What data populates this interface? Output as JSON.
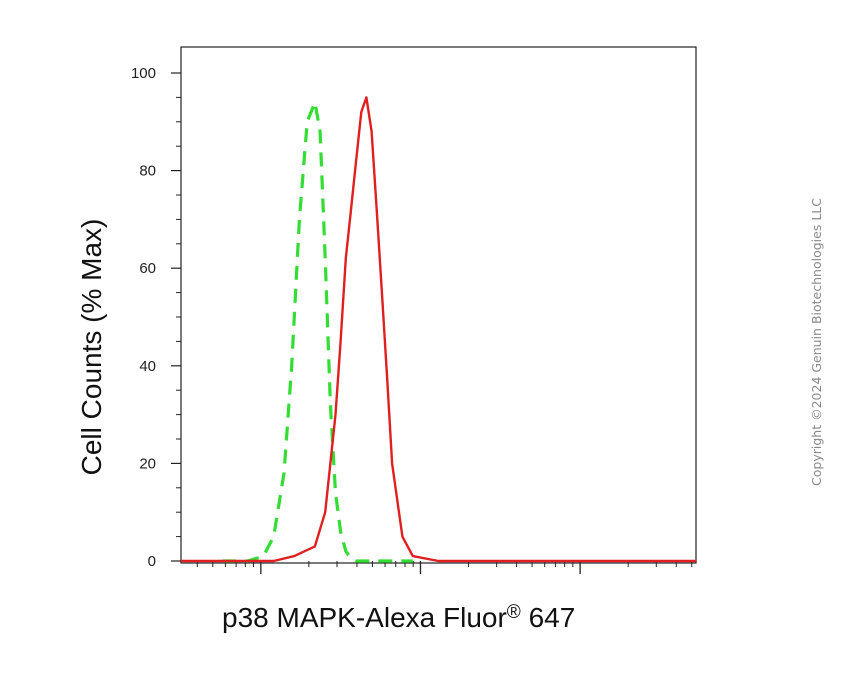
{
  "chart_data": {
    "type": "line",
    "xlabel": "p38 MAPK-Alexa Fluor",
    "xlabel_superscript": "®",
    "xlabel_suffix": " 647",
    "ylabel": "Cell Counts (% Max)",
    "yticks": [
      "0",
      "20",
      "40",
      "60",
      "80",
      "100"
    ],
    "ylim": [
      0,
      105
    ],
    "grid": false,
    "series": [
      {
        "color": "#33dd33",
        "style": "dashed",
        "x": [
          0.08,
          0.13,
          0.16,
          0.18,
          0.2,
          0.215,
          0.23,
          0.245,
          0.26,
          0.27,
          0.28,
          0.29,
          0.3,
          0.31,
          0.32,
          0.33,
          0.34,
          0.36,
          0.4,
          0.45
        ],
        "values": [
          0,
          0,
          1,
          5,
          18,
          40,
          70,
          90,
          94,
          88,
          62,
          32,
          14,
          6,
          2,
          0.5,
          0,
          0,
          0,
          0
        ]
      },
      {
        "color": "#e02020",
        "style": "solid",
        "x": [
          0.0,
          0.1,
          0.18,
          0.22,
          0.26,
          0.28,
          0.3,
          0.31,
          0.32,
          0.33,
          0.34,
          0.35,
          0.36,
          0.37,
          0.38,
          0.39,
          0.4,
          0.41,
          0.43,
          0.45,
          0.5,
          1.0
        ],
        "values": [
          0,
          0,
          0,
          1,
          3,
          10,
          30,
          45,
          62,
          72,
          82,
          92,
          95,
          88,
          72,
          55,
          38,
          20,
          5,
          1,
          0,
          0
        ]
      }
    ]
  },
  "copyright": "Copyright ©2024 Genuin Biotechnologies LLC"
}
